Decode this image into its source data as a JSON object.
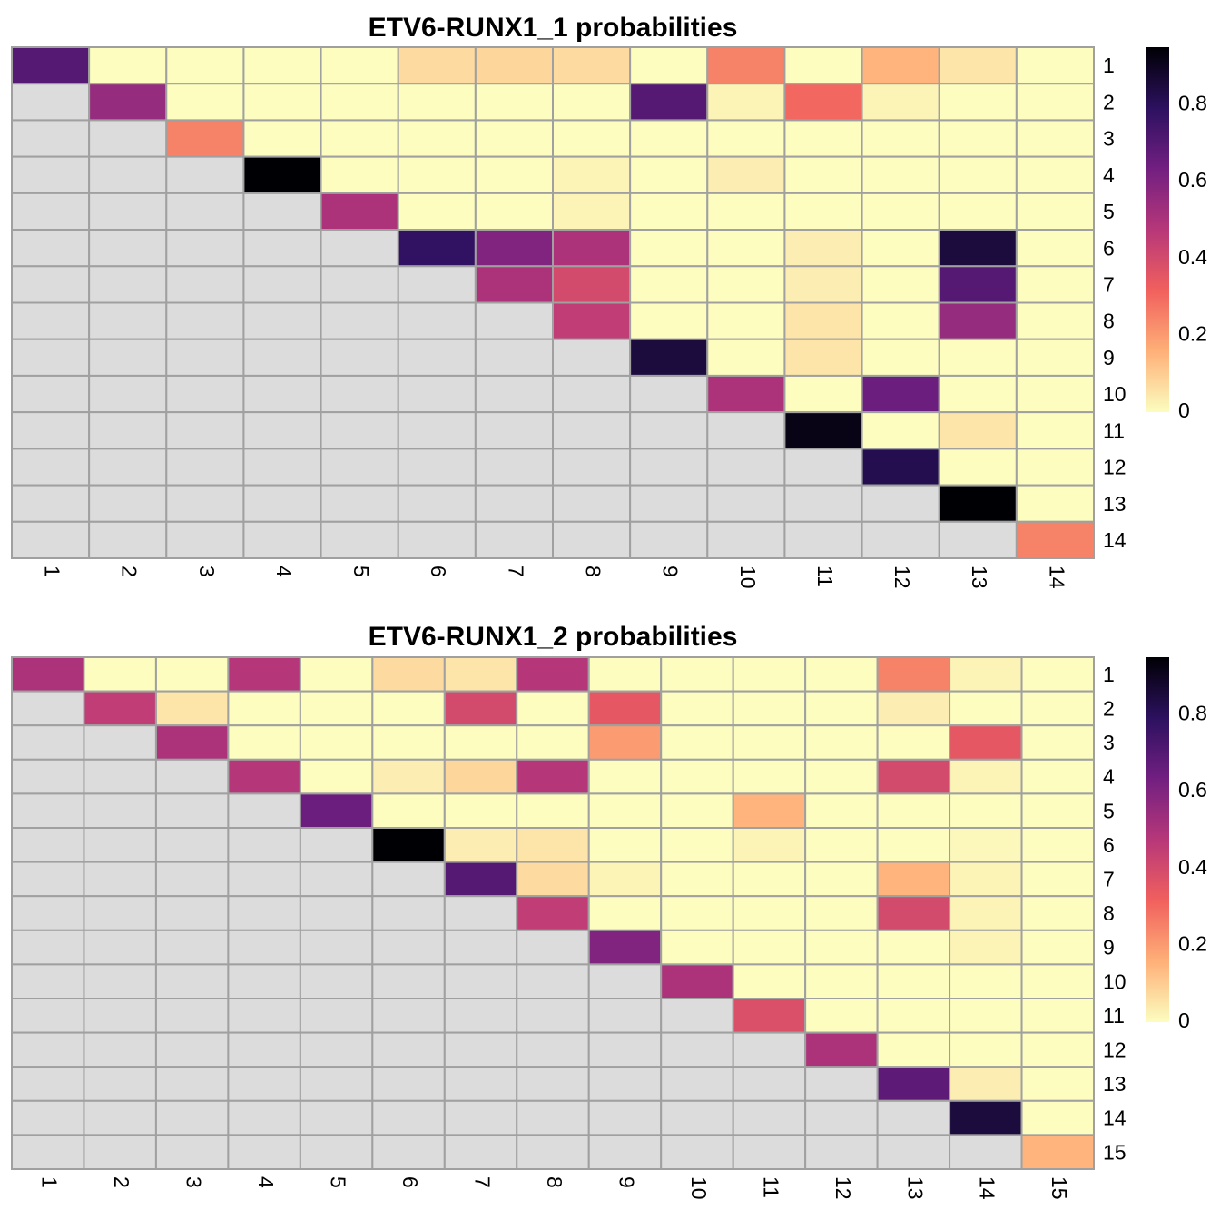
{
  "chart_data": [
    {
      "type": "heatmap",
      "title": "ETV6-RUNX1_1 probabilities",
      "rows": [
        "1",
        "2",
        "3",
        "4",
        "5",
        "6",
        "7",
        "8",
        "9",
        "10",
        "11",
        "12",
        "13",
        "14"
      ],
      "cols": [
        "1",
        "2",
        "3",
        "4",
        "5",
        "6",
        "7",
        "8",
        "9",
        "10",
        "11",
        "12",
        "13",
        "14"
      ],
      "colorbar": {
        "range": [
          0,
          0.95
        ],
        "ticks": [
          0,
          0.2,
          0.4,
          0.6,
          0.8
        ],
        "tick_labels": [
          "0",
          "0.2",
          "0.4",
          "0.6",
          "0.8"
        ]
      },
      "values": [
        [
          0.7,
          0.0,
          0.0,
          0.0,
          0.0,
          0.07,
          0.08,
          0.07,
          0.0,
          0.25,
          0.0,
          0.15,
          0.05,
          0.0
        ],
        [
          null,
          0.55,
          0.0,
          0.0,
          0.0,
          0.0,
          0.0,
          0.0,
          0.7,
          0.02,
          0.3,
          0.02,
          0.0,
          0.0
        ],
        [
          null,
          null,
          0.25,
          0.0,
          0.0,
          0.0,
          0.0,
          0.0,
          0.0,
          0.0,
          0.0,
          0.0,
          0.0,
          0.0
        ],
        [
          null,
          null,
          null,
          0.95,
          0.0,
          0.0,
          0.0,
          0.02,
          0.0,
          0.03,
          0.0,
          0.0,
          0.0,
          0.0
        ],
        [
          null,
          null,
          null,
          null,
          0.5,
          0.0,
          0.0,
          0.02,
          0.0,
          0.0,
          0.0,
          0.0,
          0.0,
          0.0
        ],
        [
          null,
          null,
          null,
          null,
          null,
          0.78,
          0.6,
          0.5,
          0.0,
          0.0,
          0.03,
          0.0,
          0.85,
          0.0
        ],
        [
          null,
          null,
          null,
          null,
          null,
          null,
          0.5,
          0.4,
          0.0,
          0.0,
          0.03,
          0.0,
          0.7,
          0.0
        ],
        [
          null,
          null,
          null,
          null,
          null,
          null,
          null,
          0.45,
          0.0,
          0.0,
          0.05,
          0.0,
          0.55,
          0.0
        ],
        [
          null,
          null,
          null,
          null,
          null,
          null,
          null,
          null,
          0.85,
          0.0,
          0.05,
          0.0,
          0.0,
          0.0
        ],
        [
          null,
          null,
          null,
          null,
          null,
          null,
          null,
          null,
          null,
          0.5,
          0.0,
          0.65,
          0.0,
          0.0
        ],
        [
          null,
          null,
          null,
          null,
          null,
          null,
          null,
          null,
          null,
          null,
          0.92,
          0.0,
          0.05,
          0.0
        ],
        [
          null,
          null,
          null,
          null,
          null,
          null,
          null,
          null,
          null,
          null,
          null,
          0.82,
          0.0,
          0.0
        ],
        [
          null,
          null,
          null,
          null,
          null,
          null,
          null,
          null,
          null,
          null,
          null,
          null,
          0.95,
          0.0
        ],
        [
          null,
          null,
          null,
          null,
          null,
          null,
          null,
          null,
          null,
          null,
          null,
          null,
          null,
          0.25
        ]
      ]
    },
    {
      "type": "heatmap",
      "title": "ETV6-RUNX1_2 probabilities",
      "rows": [
        "1",
        "2",
        "3",
        "4",
        "5",
        "6",
        "7",
        "8",
        "9",
        "10",
        "11",
        "12",
        "13",
        "14",
        "15"
      ],
      "cols": [
        "1",
        "2",
        "3",
        "4",
        "5",
        "6",
        "7",
        "8",
        "9",
        "10",
        "11",
        "12",
        "13",
        "14",
        "15"
      ],
      "colorbar": {
        "range": [
          0,
          0.95
        ],
        "ticks": [
          0,
          0.2,
          0.4,
          0.6,
          0.8
        ],
        "tick_labels": [
          "0",
          "0.2",
          "0.4",
          "0.6",
          "0.8"
        ]
      },
      "values": [
        [
          0.5,
          0.0,
          0.0,
          0.48,
          0.0,
          0.07,
          0.05,
          0.48,
          0.0,
          0.0,
          0.0,
          0.0,
          0.25,
          0.02,
          0.0
        ],
        [
          null,
          0.45,
          0.05,
          0.0,
          0.0,
          0.0,
          0.4,
          0.0,
          0.35,
          0.0,
          0.0,
          0.0,
          0.03,
          0.0,
          0.0
        ],
        [
          null,
          null,
          0.5,
          0.0,
          0.0,
          0.0,
          0.0,
          0.0,
          0.2,
          0.0,
          0.0,
          0.0,
          0.0,
          0.35,
          0.0
        ],
        [
          null,
          null,
          null,
          0.48,
          0.0,
          0.03,
          0.08,
          0.48,
          0.0,
          0.0,
          0.0,
          0.0,
          0.4,
          0.02,
          0.0
        ],
        [
          null,
          null,
          null,
          null,
          0.65,
          0.0,
          0.0,
          0.0,
          0.0,
          0.0,
          0.15,
          0.0,
          0.0,
          0.0,
          0.0
        ],
        [
          null,
          null,
          null,
          null,
          null,
          0.95,
          0.03,
          0.05,
          0.0,
          0.0,
          0.02,
          0.0,
          0.0,
          0.01,
          0.0
        ],
        [
          null,
          null,
          null,
          null,
          null,
          null,
          0.7,
          0.07,
          0.02,
          0.0,
          0.0,
          0.0,
          0.15,
          0.02,
          0.0
        ],
        [
          null,
          null,
          null,
          null,
          null,
          null,
          null,
          0.45,
          0.0,
          0.0,
          0.0,
          0.0,
          0.4,
          0.02,
          0.0
        ],
        [
          null,
          null,
          null,
          null,
          null,
          null,
          null,
          null,
          0.6,
          0.0,
          0.0,
          0.0,
          0.0,
          0.02,
          0.0
        ],
        [
          null,
          null,
          null,
          null,
          null,
          null,
          null,
          null,
          null,
          0.5,
          0.0,
          0.0,
          0.0,
          0.0,
          0.0
        ],
        [
          null,
          null,
          null,
          null,
          null,
          null,
          null,
          null,
          null,
          null,
          0.38,
          0.0,
          0.0,
          0.0,
          0.0
        ],
        [
          null,
          null,
          null,
          null,
          null,
          null,
          null,
          null,
          null,
          null,
          null,
          0.5,
          0.0,
          0.0,
          0.0
        ],
        [
          null,
          null,
          null,
          null,
          null,
          null,
          null,
          null,
          null,
          null,
          null,
          null,
          0.68,
          0.03,
          0.0
        ],
        [
          null,
          null,
          null,
          null,
          null,
          null,
          null,
          null,
          null,
          null,
          null,
          null,
          null,
          0.85,
          0.0
        ],
        [
          null,
          null,
          null,
          null,
          null,
          null,
          null,
          null,
          null,
          null,
          null,
          null,
          null,
          null,
          0.15
        ]
      ]
    }
  ],
  "colors": {
    "missing": "#dcdcdc",
    "grid": "#a0a0a0",
    "scale": [
      "#fcfdbf",
      "#feb078",
      "#f1605d",
      "#b73779",
      "#721f81",
      "#2c115f",
      "#000004"
    ]
  }
}
